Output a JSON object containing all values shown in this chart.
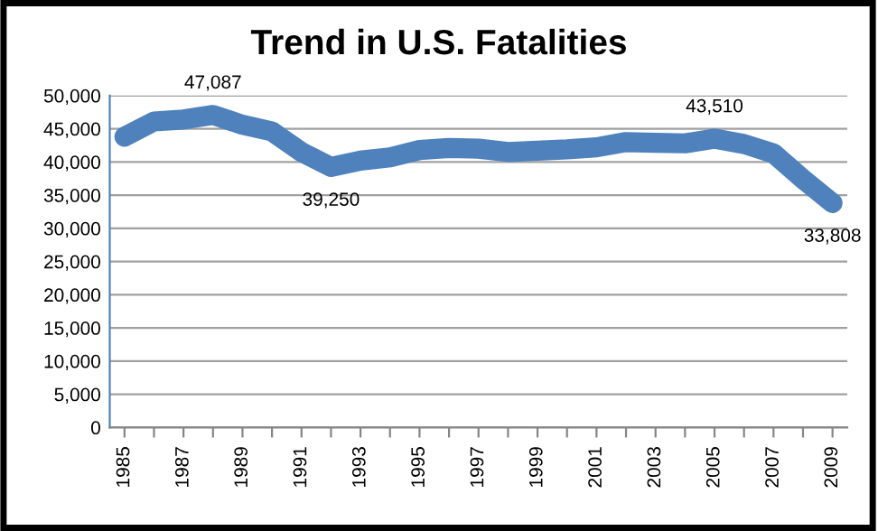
{
  "chart_data": {
    "type": "line",
    "title": "Trend in U.S. Fatalities",
    "categories": [
      "1985",
      null,
      "1987",
      null,
      "1989",
      null,
      "1991",
      null,
      "1993",
      null,
      "1995",
      null,
      "1997",
      null,
      "1999",
      null,
      "2001",
      null,
      "2003",
      null,
      "2005",
      null,
      "2007",
      null,
      "2009"
    ],
    "series": [
      {
        "color": "#4f81bd",
        "values": [
          43800,
          46100,
          46400,
          47087,
          45600,
          44600,
          41500,
          39250,
          40200,
          40700,
          41800,
          42100,
          42000,
          41500,
          41700,
          41900,
          42200,
          43000,
          42900,
          42800,
          43510,
          42700,
          41300,
          37400,
          33808
        ],
        "value_labels": [
          null,
          null,
          null,
          "47,087",
          null,
          null,
          null,
          "39,250",
          null,
          null,
          null,
          null,
          null,
          null,
          null,
          null,
          null,
          null,
          null,
          null,
          "43,510",
          null,
          null,
          null,
          "33,808"
        ]
      }
    ],
    "ylim": [
      0,
      50000
    ],
    "yticks": [
      {
        "value": 0,
        "label": "0"
      },
      {
        "value": 5000,
        "label": "5,000"
      },
      {
        "value": 10000,
        "label": "10,000"
      },
      {
        "value": 15000,
        "label": "15,000"
      },
      {
        "value": 20000,
        "label": "20,000"
      },
      {
        "value": 25000,
        "label": "25,000"
      },
      {
        "value": 30000,
        "label": "30,000"
      },
      {
        "value": 35000,
        "label": "35,000"
      },
      {
        "value": 40000,
        "label": "40,000"
      },
      {
        "value": 45000,
        "label": "45,000"
      },
      {
        "value": 50000,
        "label": "50,000"
      }
    ],
    "grid": "y",
    "line_style": "solid"
  }
}
